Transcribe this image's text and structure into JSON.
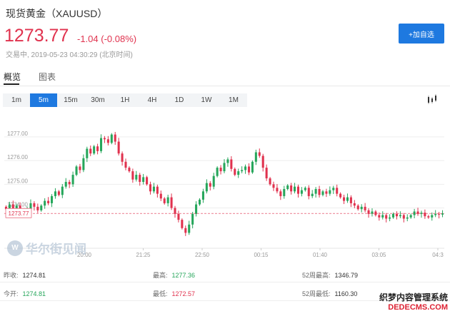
{
  "header": {
    "title": "现货黄金（XAUUSD）",
    "price": "1273.77",
    "change": "-1.04 (-0.08%)",
    "status": "交易中, 2019-05-23 04:30:29 (北京时间)",
    "add_button": "+加自选"
  },
  "main_tabs": [
    {
      "label": "概览",
      "active": true
    },
    {
      "label": "图表",
      "active": false
    }
  ],
  "periods": [
    {
      "label": "1m",
      "active": false
    },
    {
      "label": "5m",
      "active": true
    },
    {
      "label": "15m",
      "active": false
    },
    {
      "label": "30m",
      "active": false
    },
    {
      "label": "1H",
      "active": false
    },
    {
      "label": "4H",
      "active": false
    },
    {
      "label": "1D",
      "active": false
    },
    {
      "label": "1W",
      "active": false
    },
    {
      "label": "1M",
      "active": false
    }
  ],
  "chart_type_icon": "candlestick-icon",
  "chart_data": {
    "type": "candlestick",
    "ylim": [
      1272.3,
      1277.6
    ],
    "y_ticks": [
      "1277.00",
      "1276.00",
      "1275.00",
      "1274.00"
    ],
    "y_tick_values": [
      1277.0,
      1276.0,
      1275.0,
      1274.0
    ],
    "x_ticks": [
      "20:00",
      "21:25",
      "22:50",
      "00:15",
      "01:40",
      "03:05",
      "04:3"
    ],
    "current_price_label": "1273.77",
    "colors": {
      "up": "#26a65b",
      "down": "#e0324e",
      "grid": "#eeeeee"
    },
    "closes": [
      1273.95,
      1274.15,
      1273.9,
      1274.1,
      1273.85,
      1273.75,
      1273.95,
      1274.2,
      1274.05,
      1273.9,
      1274.1,
      1274.3,
      1274.2,
      1274.5,
      1274.7,
      1274.55,
      1274.9,
      1275.1,
      1275.0,
      1275.4,
      1275.75,
      1275.6,
      1276.1,
      1276.5,
      1276.3,
      1276.6,
      1276.4,
      1276.95,
      1276.9,
      1276.75,
      1277.1,
      1276.8,
      1276.3,
      1275.95,
      1275.7,
      1275.55,
      1275.2,
      1275.4,
      1275.1,
      1275.3,
      1275.0,
      1274.7,
      1274.9,
      1274.6,
      1274.4,
      1274.2,
      1274.45,
      1274.0,
      1273.75,
      1273.5,
      1273.15,
      1272.95,
      1273.3,
      1273.75,
      1274.15,
      1274.35,
      1274.7,
      1275.05,
      1274.9,
      1275.35,
      1275.7,
      1275.55,
      1275.9,
      1276.05,
      1275.65,
      1275.4,
      1275.55,
      1275.6,
      1275.75,
      1275.5,
      1275.95,
      1276.35,
      1276.2,
      1275.7,
      1275.25,
      1275.0,
      1274.85,
      1274.7,
      1274.5,
      1274.8,
      1274.95,
      1274.7,
      1274.9,
      1274.6,
      1274.75,
      1274.85,
      1274.5,
      1274.6,
      1274.8,
      1274.55,
      1274.7,
      1274.6,
      1274.75,
      1274.85,
      1274.6,
      1274.45,
      1274.3,
      1274.45,
      1274.2,
      1274.1,
      1273.95,
      1274.05,
      1273.9,
      1273.75,
      1273.85,
      1273.7,
      1273.6,
      1273.7,
      1273.55,
      1273.6,
      1273.75,
      1273.65,
      1273.7,
      1273.55,
      1273.6,
      1273.7,
      1273.85,
      1273.75,
      1273.8,
      1273.65,
      1273.6,
      1273.7,
      1273.75,
      1273.72,
      1273.77
    ]
  },
  "footer": {
    "rows": [
      [
        {
          "label": "昨收:",
          "value": "1274.81",
          "tone": ""
        },
        {
          "label": "最高:",
          "value": "1277.36",
          "tone": "up"
        },
        {
          "label": "52周最高:",
          "value": "1346.79",
          "tone": ""
        }
      ],
      [
        {
          "label": "今开:",
          "value": "1274.81",
          "tone": "up"
        },
        {
          "label": "最低:",
          "value": "1272.57",
          "tone": "down"
        },
        {
          "label": "52周最低:",
          "value": "1160.30",
          "tone": ""
        }
      ]
    ]
  },
  "watermark": {
    "logo": "W",
    "text": "华尔街见闻"
  },
  "corner_watermark": {
    "line1": "织梦内容管理系统",
    "line2": "DEDECMS.COM"
  }
}
